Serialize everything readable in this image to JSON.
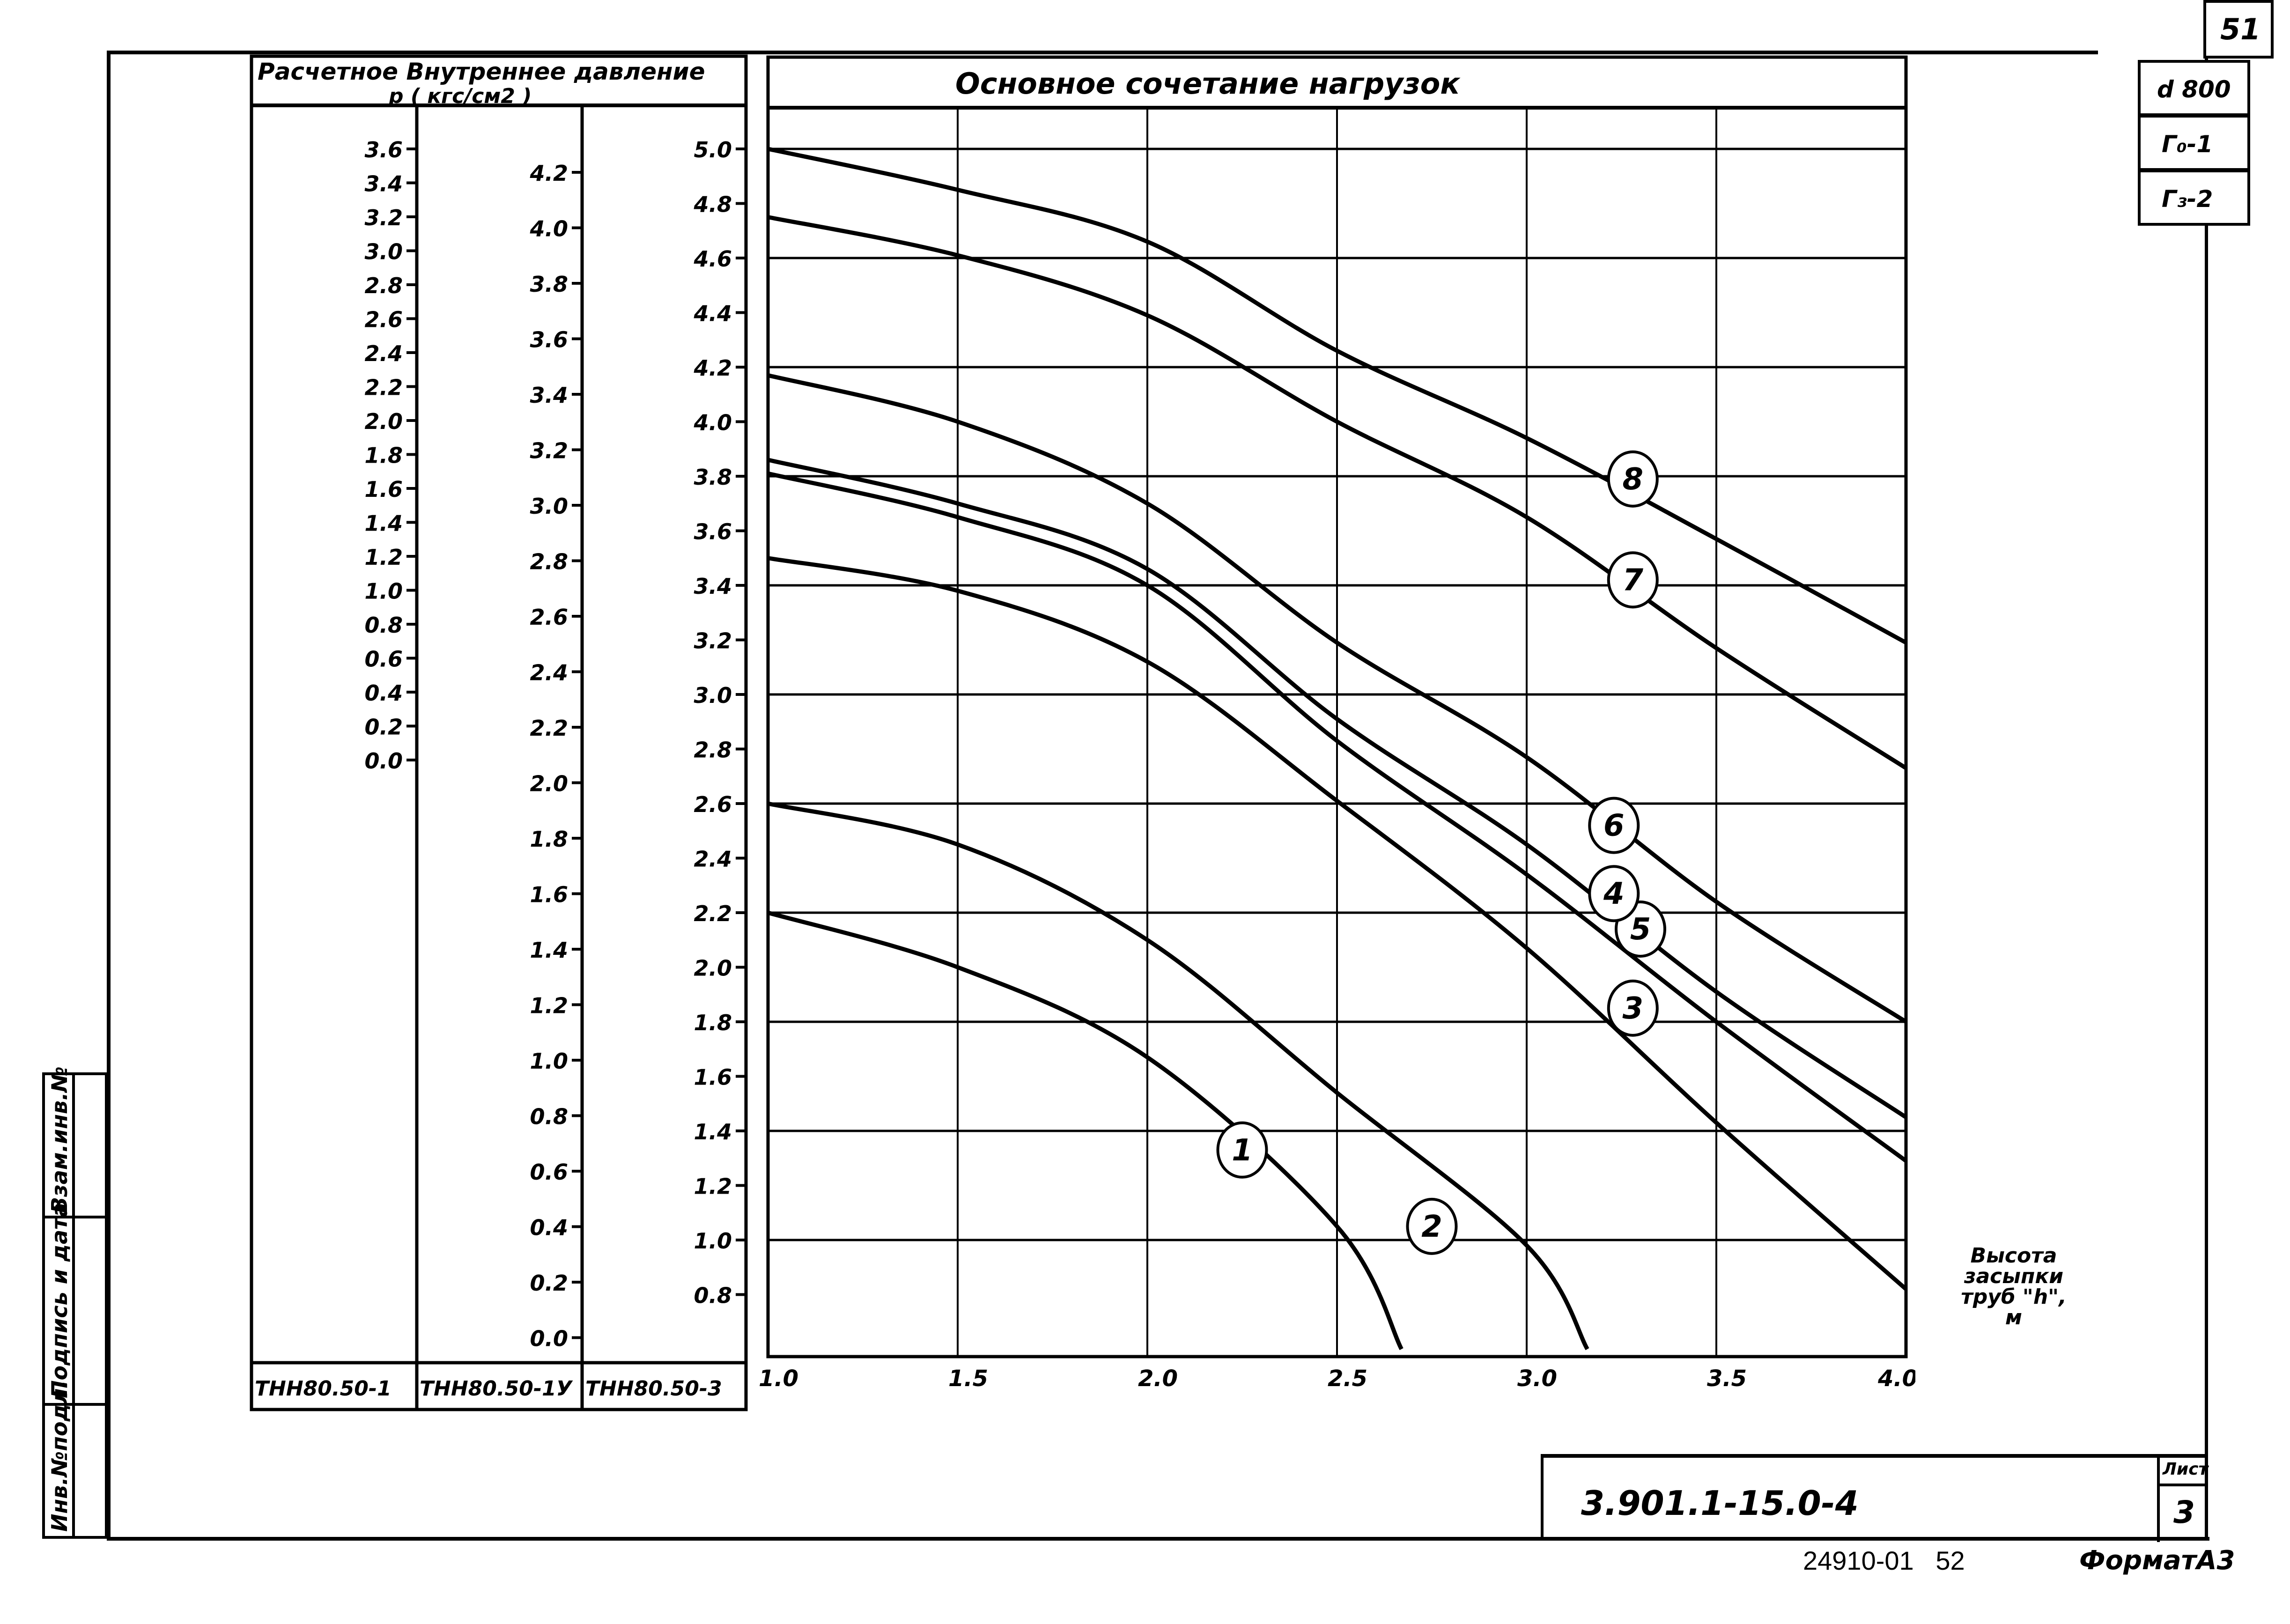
{
  "sheet": {
    "corner_number": "51",
    "side_tags": [
      "d 800",
      "Г₀-1",
      "Г₃-2"
    ],
    "left_stamp": [
      "Инв.№подл.",
      "Подпись и дата",
      "Взам.инв.№"
    ],
    "doc_code": "3.901.1-15.0-4",
    "sheet_label": "Лист",
    "sheet_number": "3",
    "footer_code": "24910-01   52",
    "format": "ФорматА3"
  },
  "scales": {
    "header_line1": "Расчетное  Внутреннее  давление",
    "header_line2": "p  ( кгс/см2 )",
    "columns": [
      {
        "name": "ТНН80.50-1",
        "ticks": [
          "3.6",
          "3.4",
          "3.2",
          "3.0",
          "2.8",
          "2.6",
          "2.4",
          "2.2",
          "2.0",
          "1.8",
          "1.6",
          "1.4",
          "1.2",
          "1.0",
          "0.8",
          "0.6",
          "0.4",
          "0.2",
          "0.0"
        ]
      },
      {
        "name": "ТНН80.50-1У",
        "ticks": [
          "4.2",
          "4.0",
          "3.8",
          "3.6",
          "3.4",
          "3.2",
          "3.0",
          "2.8",
          "2.6",
          "2.4",
          "2.2",
          "2.0",
          "1.8",
          "1.6",
          "1.4",
          "1.2",
          "1.0",
          "0.8",
          "0.6",
          "0.4",
          "0.2",
          "0.0"
        ]
      },
      {
        "name": "ТНН80.50-3",
        "ticks": [
          "5.0",
          "4.8",
          "4.6",
          "4.4",
          "4.2",
          "4.0",
          "3.8",
          "3.6",
          "3.4",
          "3.2",
          "3.0",
          "2.8",
          "2.6",
          "2.4",
          "2.2",
          "2.0",
          "1.8",
          "1.6",
          "1.4",
          "1.2",
          "1.0",
          "0.8"
        ]
      }
    ]
  },
  "chart_data": {
    "type": "line",
    "title": "Основное сочетание нагрузок",
    "xlabel": "Высота засыпки труб \"h\", м",
    "ylabel": "Расчетное внутреннее давление p (кгс/см2)",
    "x_ticks": [
      "1.0",
      "1.5",
      "2.0",
      "2.5",
      "3.0",
      "3.5",
      "4.0"
    ],
    "xlim": [
      1.0,
      4.0
    ],
    "ylim_reference_scale": "ТНН80.50-3",
    "ylim": [
      0.6,
      5.2
    ],
    "grid": true,
    "x": [
      1.0,
      1.5,
      2.0,
      2.5,
      3.0,
      3.5,
      4.0
    ],
    "series": [
      {
        "name": "1",
        "values": [
          2.2,
          2.0,
          1.67,
          1.05,
          null,
          null,
          null
        ],
        "end": [
          2.67,
          0.6
        ]
      },
      {
        "name": "2",
        "values": [
          2.6,
          2.45,
          2.1,
          1.54,
          0.98,
          null,
          null
        ],
        "end": [
          3.16,
          0.6
        ]
      },
      {
        "name": "3",
        "values": [
          3.5,
          3.38,
          3.12,
          2.61,
          2.07,
          1.43,
          0.82
        ]
      },
      {
        "name": "5",
        "values": [
          3.81,
          3.65,
          3.4,
          2.83,
          2.34,
          1.8,
          1.29
        ]
      },
      {
        "name": "4",
        "values": [
          3.86,
          3.7,
          3.46,
          2.91,
          2.45,
          1.91,
          1.45
        ]
      },
      {
        "name": "6",
        "values": [
          4.17,
          4.0,
          3.7,
          3.19,
          2.77,
          2.24,
          1.8
        ]
      },
      {
        "name": "7",
        "values": [
          4.75,
          4.61,
          4.39,
          4.0,
          3.65,
          3.17,
          2.73
        ]
      },
      {
        "name": "8",
        "values": [
          5.0,
          4.85,
          4.66,
          4.26,
          3.94,
          3.57,
          3.19
        ]
      }
    ],
    "curve_labels": [
      {
        "label": "1",
        "x": 2.25,
        "y": 1.33
      },
      {
        "label": "2",
        "x": 2.75,
        "y": 1.05
      },
      {
        "label": "3",
        "x": 3.28,
        "y": 1.85
      },
      {
        "label": "5",
        "x": 3.3,
        "y": 2.14
      },
      {
        "label": "4",
        "x": 3.23,
        "y": 2.27
      },
      {
        "label": "6",
        "x": 3.23,
        "y": 2.52
      },
      {
        "label": "7",
        "x": 3.28,
        "y": 3.42
      },
      {
        "label": "8",
        "x": 3.28,
        "y": 3.79
      }
    ]
  }
}
